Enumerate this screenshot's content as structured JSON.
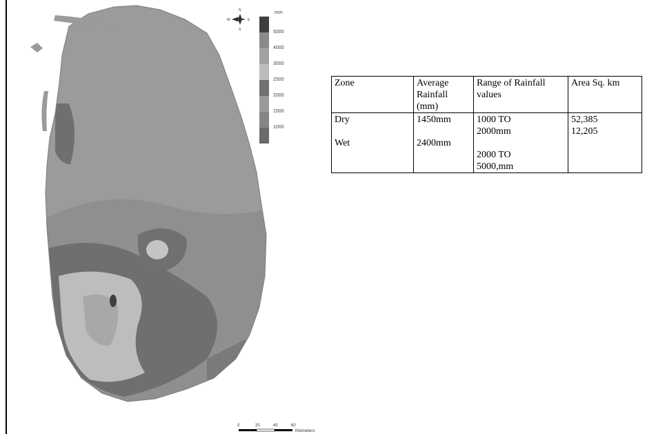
{
  "legend": {
    "unit": "mm",
    "labels": [
      "5000",
      "4000",
      "3000",
      "2500",
      "2000",
      "1500",
      "1000"
    ],
    "colors": [
      "#3f3f3f",
      "#8a8a8a",
      "#a2a2a2",
      "#bcbcbc",
      "#707070",
      "#9a9a9a",
      "#858585",
      "#6a6a6a"
    ]
  },
  "compass": {
    "n": "N",
    "s": "S",
    "e": "E",
    "w": "W"
  },
  "scale_bar": {
    "ticks": [
      "0",
      "20",
      "40",
      "60"
    ],
    "unit": "Kilometers"
  },
  "table": {
    "headers": [
      "Zone",
      "Average Rainfall (mm)",
      "Range of Rainfall values",
      "Area Sq. km"
    ],
    "rows": [
      {
        "zone": "Dry",
        "average": "1450mm",
        "range": "1000 TO 2000mm",
        "area": "52,385"
      },
      {
        "zone": "Wet",
        "average": "2400mm",
        "range": "2000 TO 5000,mm",
        "area": "12,205"
      }
    ]
  }
}
